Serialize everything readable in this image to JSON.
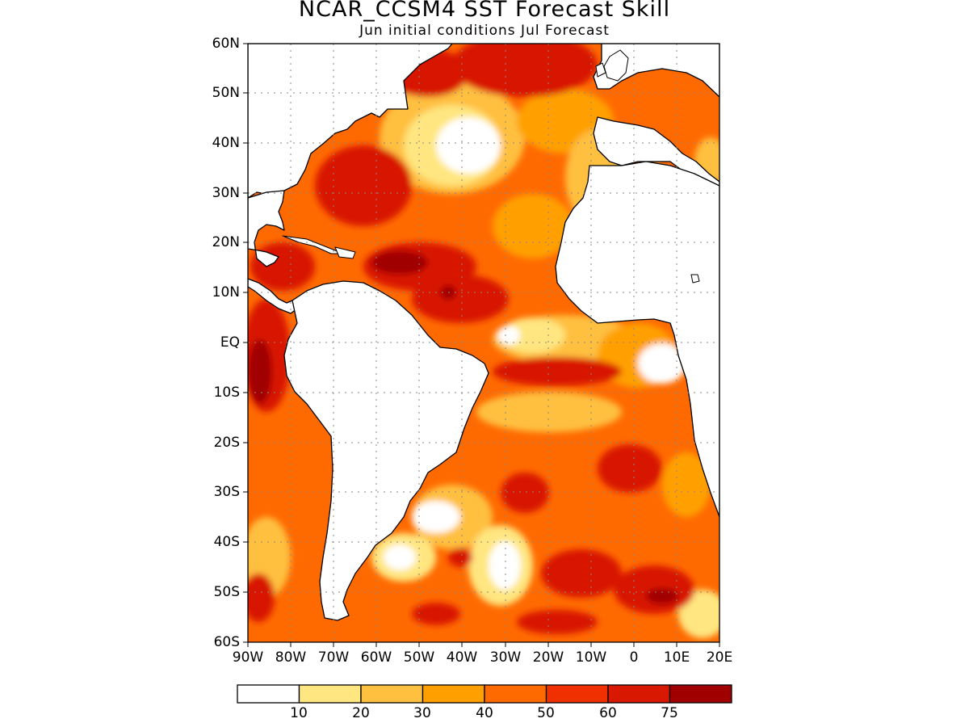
{
  "title": "NCAR_CCSM4 SST Forecast Skill",
  "subtitle": "Jun initial conditions  Jul Forecast",
  "map": {
    "lat_labels": [
      "60N",
      "50N",
      "40N",
      "30N",
      "20N",
      "10N",
      "EQ",
      "10S",
      "20S",
      "30S",
      "40S",
      "50S",
      "60S"
    ],
    "lon_labels": [
      "90W",
      "80W",
      "70W",
      "60W",
      "50W",
      "40W",
      "30W",
      "20W",
      "10W",
      "0",
      "10E",
      "20E"
    ],
    "lat_range": [
      -60,
      60
    ],
    "lon_range": [
      -90,
      20
    ],
    "grid": "dotted"
  },
  "colorbar": {
    "levels": [
      "10",
      "20",
      "30",
      "40",
      "50",
      "60",
      "75"
    ],
    "colors": [
      "#ffffff",
      "#ffe680",
      "#ffc040",
      "#ffa000",
      "#ff6a00",
      "#f03000",
      "#d81800",
      "#a00000"
    ]
  }
}
